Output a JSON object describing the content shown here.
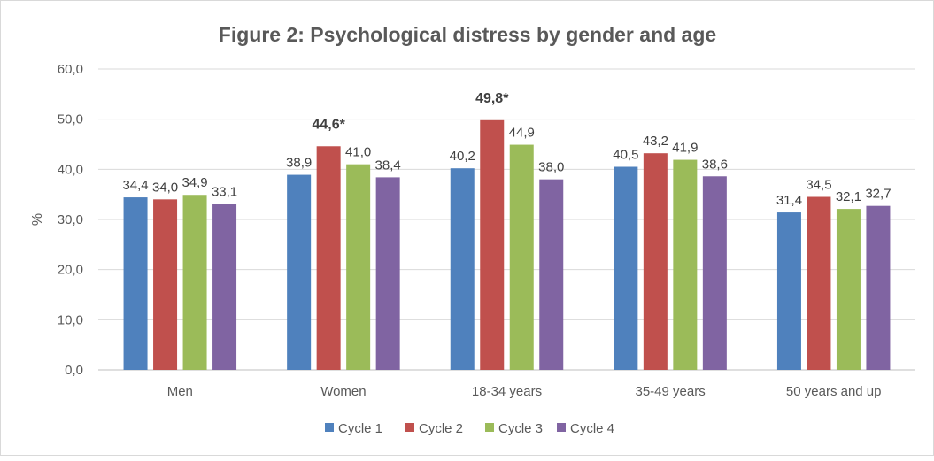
{
  "chart_data": {
    "type": "bar",
    "title": "Figure 2: Psychological distress by gender and age",
    "xlabel": "",
    "ylabel": "%",
    "ylim": [
      0,
      60
    ],
    "yticks": [
      0,
      10,
      20,
      30,
      40,
      50,
      60
    ],
    "ytick_labels": [
      "0,0",
      "10,0",
      "20,0",
      "30,0",
      "40,0",
      "50,0",
      "60,0"
    ],
    "grid": true,
    "legend_position": "bottom",
    "categories": [
      "Men",
      "Women",
      "18-34 years",
      "35-49 years",
      "50 years and up"
    ],
    "series": [
      {
        "name": "Cycle 1",
        "color": "#4f81bd",
        "values": [
          34.4,
          38.9,
          40.2,
          40.5,
          31.4
        ],
        "labels": [
          "34,4",
          "38,9",
          "40,2",
          "40,5",
          "31,4"
        ],
        "bold": [
          false,
          false,
          false,
          false,
          false
        ]
      },
      {
        "name": "Cycle 2",
        "color": "#c0504d",
        "values": [
          34.0,
          44.6,
          49.8,
          43.2,
          34.5
        ],
        "labels": [
          "34,0",
          "44,6*",
          "49,8*",
          "43,2",
          "34,5"
        ],
        "bold": [
          false,
          true,
          true,
          false,
          false
        ]
      },
      {
        "name": "Cycle 3",
        "color": "#9bbb59",
        "values": [
          34.9,
          41.0,
          44.9,
          41.9,
          32.1
        ],
        "labels": [
          "34,9",
          "41,0",
          "44,9",
          "41,9",
          "32,1"
        ],
        "bold": [
          false,
          false,
          false,
          false,
          false
        ]
      },
      {
        "name": "Cycle 4",
        "color": "#8064a2",
        "values": [
          33.1,
          38.4,
          38.0,
          38.6,
          32.7
        ],
        "labels": [
          "33,1",
          "38,4",
          "38,0",
          "38,6",
          "32,7"
        ],
        "bold": [
          false,
          false,
          false,
          false,
          false
        ]
      }
    ]
  }
}
